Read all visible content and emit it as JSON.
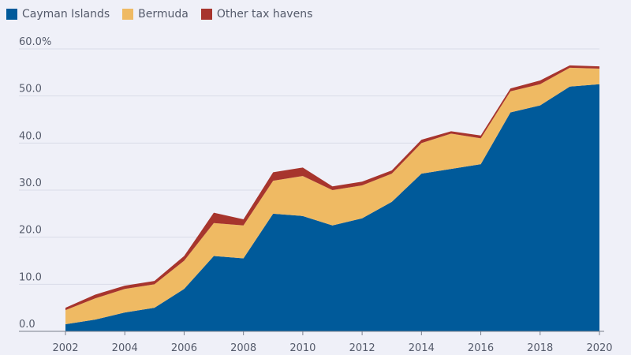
{
  "chart_data": {
    "type": "area",
    "stacked": true,
    "x": [
      2002,
      2003,
      2004,
      2005,
      2006,
      2007,
      2008,
      2009,
      2010,
      2011,
      2012,
      2013,
      2014,
      2015,
      2016,
      2017,
      2018,
      2019,
      2020
    ],
    "series": [
      {
        "name": "Cayman Islands",
        "color": "#005a9a",
        "values": [
          1.5,
          2.5,
          4.0,
          5.0,
          9.0,
          16.0,
          15.5,
          25.0,
          24.5,
          22.5,
          24.0,
          27.5,
          33.5,
          34.5,
          35.5,
          46.5,
          48.0,
          52.0,
          52.5
        ]
      },
      {
        "name": "Bermuda",
        "color": "#efba63",
        "values": [
          3.0,
          4.5,
          5.0,
          5.0,
          6.0,
          7.0,
          7.0,
          7.0,
          8.5,
          7.5,
          7.0,
          6.0,
          6.5,
          7.5,
          5.5,
          4.5,
          4.5,
          4.0,
          3.3
        ]
      },
      {
        "name": "Other tax havens",
        "color": "#a7352d",
        "values": [
          0.5,
          0.8,
          0.7,
          0.7,
          1.0,
          2.2,
          1.3,
          1.8,
          1.8,
          0.8,
          0.8,
          0.7,
          0.7,
          0.5,
          0.6,
          0.6,
          0.8,
          0.5,
          0.5
        ]
      }
    ],
    "xticks": [
      "2002",
      "2004",
      "2006",
      "2008",
      "2010",
      "2012",
      "2014",
      "2016",
      "2018",
      "2020"
    ],
    "yticks": [
      "0.0",
      "10.0",
      "20.0",
      "30.0",
      "40.0",
      "50.0",
      "60.0%"
    ],
    "ylim": [
      0,
      60
    ],
    "grid": true,
    "legend_position": "top-left"
  }
}
